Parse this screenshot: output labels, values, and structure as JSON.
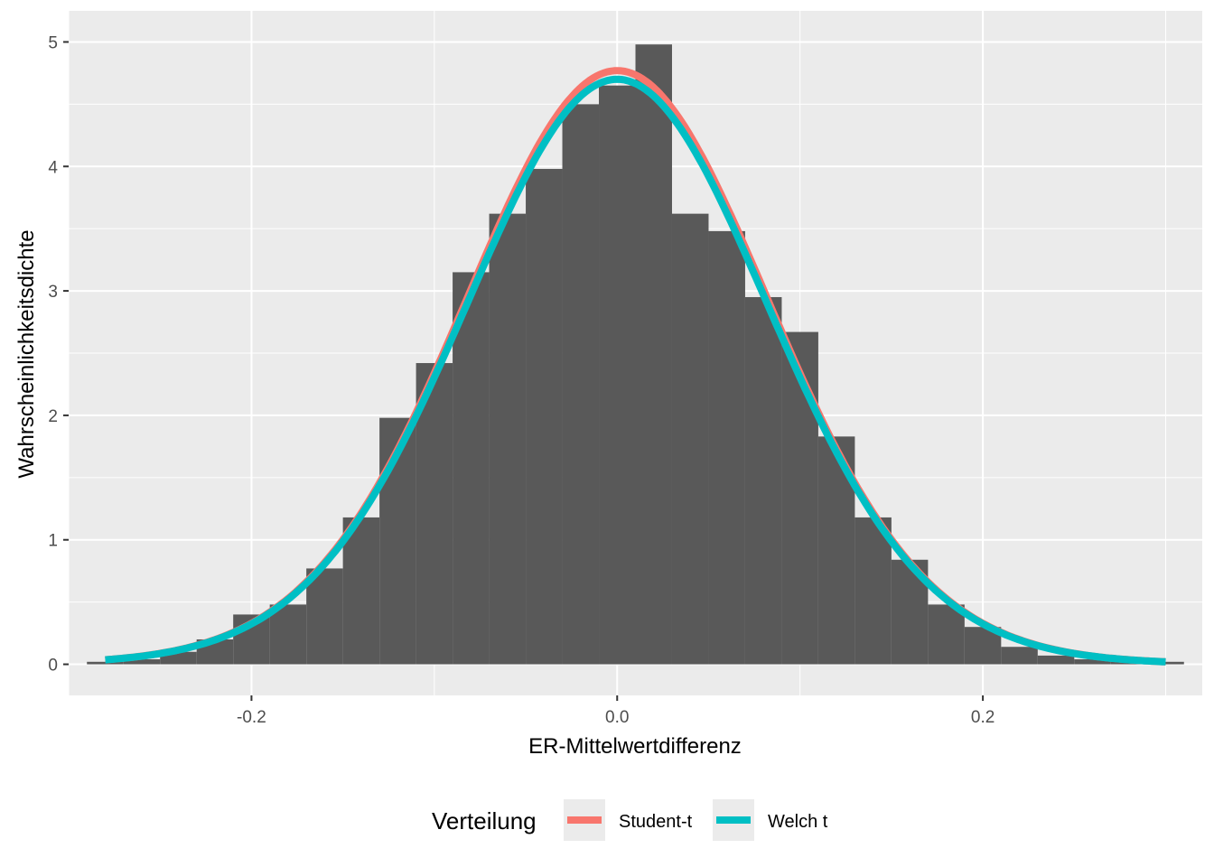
{
  "colors": {
    "panel_background": "#EBEBEB",
    "grid": "#FFFFFF",
    "bars": "#595959",
    "student_t": "#F8766D",
    "welch_t": "#00BFC4"
  },
  "chart_data": {
    "type": "bar",
    "title": "",
    "xlabel": "ER-Mittelwertdifferenz",
    "ylabel": "Wahrscheinlichkeitsdichte",
    "xlim": [
      -0.3,
      0.32
    ],
    "ylim": [
      -0.25,
      5.25
    ],
    "x_ticks": [
      -0.2,
      0.0,
      0.2
    ],
    "x_tick_labels": [
      "-0.2",
      "0.0",
      "0.2"
    ],
    "y_ticks": [
      0,
      1,
      2,
      3,
      4,
      5
    ],
    "y_tick_labels": [
      "0",
      "1",
      "2",
      "3",
      "4",
      "5"
    ],
    "grid": true,
    "histogram": {
      "bin_width": 0.02,
      "bins": [
        {
          "x0": -0.29,
          "x1": -0.27,
          "density": 0.02
        },
        {
          "x0": -0.27,
          "x1": -0.25,
          "density": 0.04
        },
        {
          "x0": -0.25,
          "x1": -0.23,
          "density": 0.1
        },
        {
          "x0": -0.23,
          "x1": -0.21,
          "density": 0.2
        },
        {
          "x0": -0.21,
          "x1": -0.19,
          "density": 0.4
        },
        {
          "x0": -0.19,
          "x1": -0.17,
          "density": 0.48
        },
        {
          "x0": -0.17,
          "x1": -0.15,
          "density": 0.77
        },
        {
          "x0": -0.15,
          "x1": -0.13,
          "density": 1.18
        },
        {
          "x0": -0.13,
          "x1": -0.11,
          "density": 1.98
        },
        {
          "x0": -0.11,
          "x1": -0.09,
          "density": 2.42
        },
        {
          "x0": -0.09,
          "x1": -0.07,
          "density": 3.15
        },
        {
          "x0": -0.07,
          "x1": -0.05,
          "density": 3.62
        },
        {
          "x0": -0.05,
          "x1": -0.03,
          "density": 3.98
        },
        {
          "x0": -0.03,
          "x1": -0.01,
          "density": 4.5
        },
        {
          "x0": -0.01,
          "x1": 0.01,
          "density": 4.65
        },
        {
          "x0": 0.01,
          "x1": 0.03,
          "density": 4.98
        },
        {
          "x0": 0.03,
          "x1": 0.05,
          "density": 3.62
        },
        {
          "x0": 0.05,
          "x1": 0.07,
          "density": 3.48
        },
        {
          "x0": 0.07,
          "x1": 0.09,
          "density": 2.95
        },
        {
          "x0": 0.09,
          "x1": 0.11,
          "density": 2.67
        },
        {
          "x0": 0.11,
          "x1": 0.13,
          "density": 1.83
        },
        {
          "x0": 0.13,
          "x1": 0.15,
          "density": 1.18
        },
        {
          "x0": 0.15,
          "x1": 0.17,
          "density": 0.84
        },
        {
          "x0": 0.17,
          "x1": 0.19,
          "density": 0.48
        },
        {
          "x0": 0.19,
          "x1": 0.21,
          "density": 0.3
        },
        {
          "x0": 0.21,
          "x1": 0.23,
          "density": 0.14
        },
        {
          "x0": 0.23,
          "x1": 0.25,
          "density": 0.07
        },
        {
          "x0": 0.25,
          "x1": 0.27,
          "density": 0.04
        },
        {
          "x0": 0.27,
          "x1": 0.29,
          "density": 0.02
        },
        {
          "x0": 0.29,
          "x1": 0.31,
          "density": 0.02
        }
      ]
    },
    "series": [
      {
        "name": "Student-t",
        "color": "#F8766D",
        "peak_density": 4.77,
        "x_range": [
          -0.28,
          0.3
        ]
      },
      {
        "name": "Welch t",
        "color": "#00BFC4",
        "peak_density": 4.7,
        "x_range": [
          -0.28,
          0.3
        ]
      }
    ],
    "legend": {
      "title": "Verteilung",
      "position": "bottom",
      "entries": [
        "Student-t",
        "Welch t"
      ]
    }
  }
}
